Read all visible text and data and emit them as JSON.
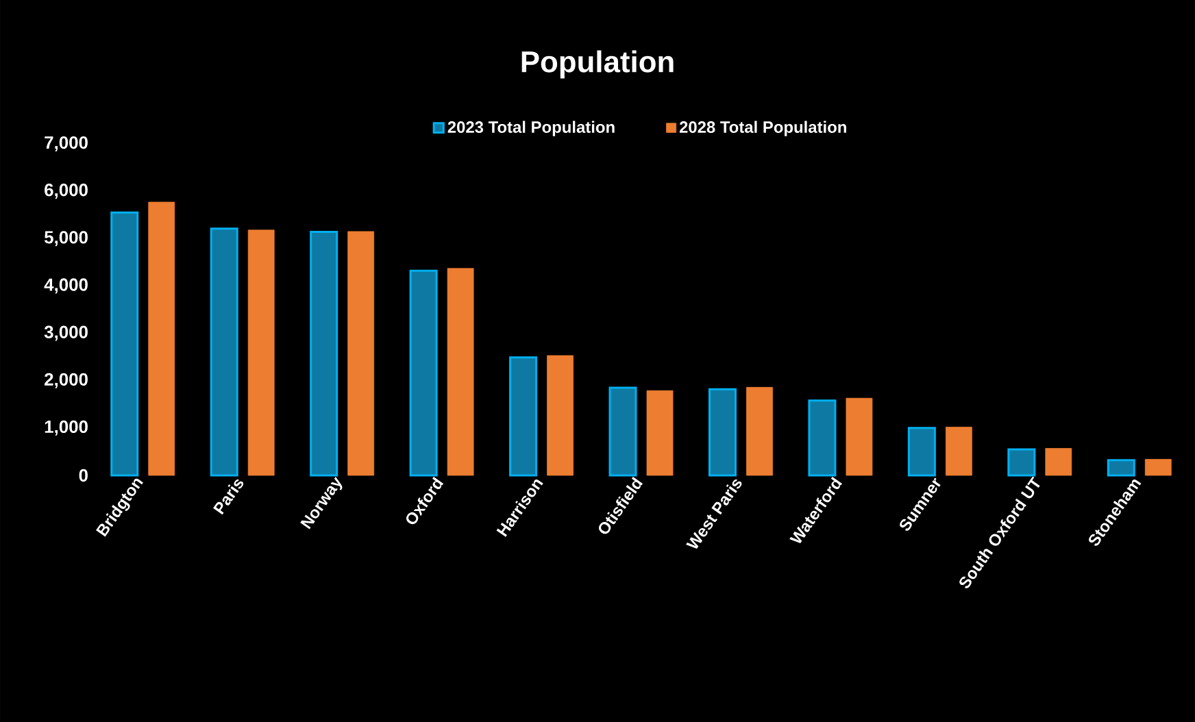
{
  "chart_data": {
    "type": "bar",
    "title": "Population",
    "categories": [
      "Bridgton",
      "Paris",
      "Norway",
      "Oxford",
      "Harrison",
      "Otisfield",
      "West Paris",
      "Waterford",
      "Sumner",
      "South Oxford UT",
      "Stoneham"
    ],
    "series": [
      {
        "name": "2023 Total Population",
        "color": "#0e7aa3",
        "values": [
          5550,
          5210,
          5140,
          4320,
          2490,
          1850,
          1820,
          1580,
          1000,
          550,
          320
        ]
      },
      {
        "name": "2028 Total Population",
        "color": "#ed7d31",
        "values": [
          5770,
          5180,
          5150,
          4370,
          2530,
          1790,
          1860,
          1630,
          1020,
          570,
          340
        ]
      }
    ],
    "ylim": [
      0,
      7000
    ],
    "yticks": [
      {
        "value": 0,
        "label": "0"
      },
      {
        "value": 1000,
        "label": "1,000"
      },
      {
        "value": 2000,
        "label": "2,000"
      },
      {
        "value": 3000,
        "label": "3,000"
      },
      {
        "value": 4000,
        "label": "4,000"
      },
      {
        "value": 5000,
        "label": "5,000"
      },
      {
        "value": 6000,
        "label": "6,000"
      },
      {
        "value": 7000,
        "label": "7,000"
      }
    ],
    "legend": "top"
  }
}
